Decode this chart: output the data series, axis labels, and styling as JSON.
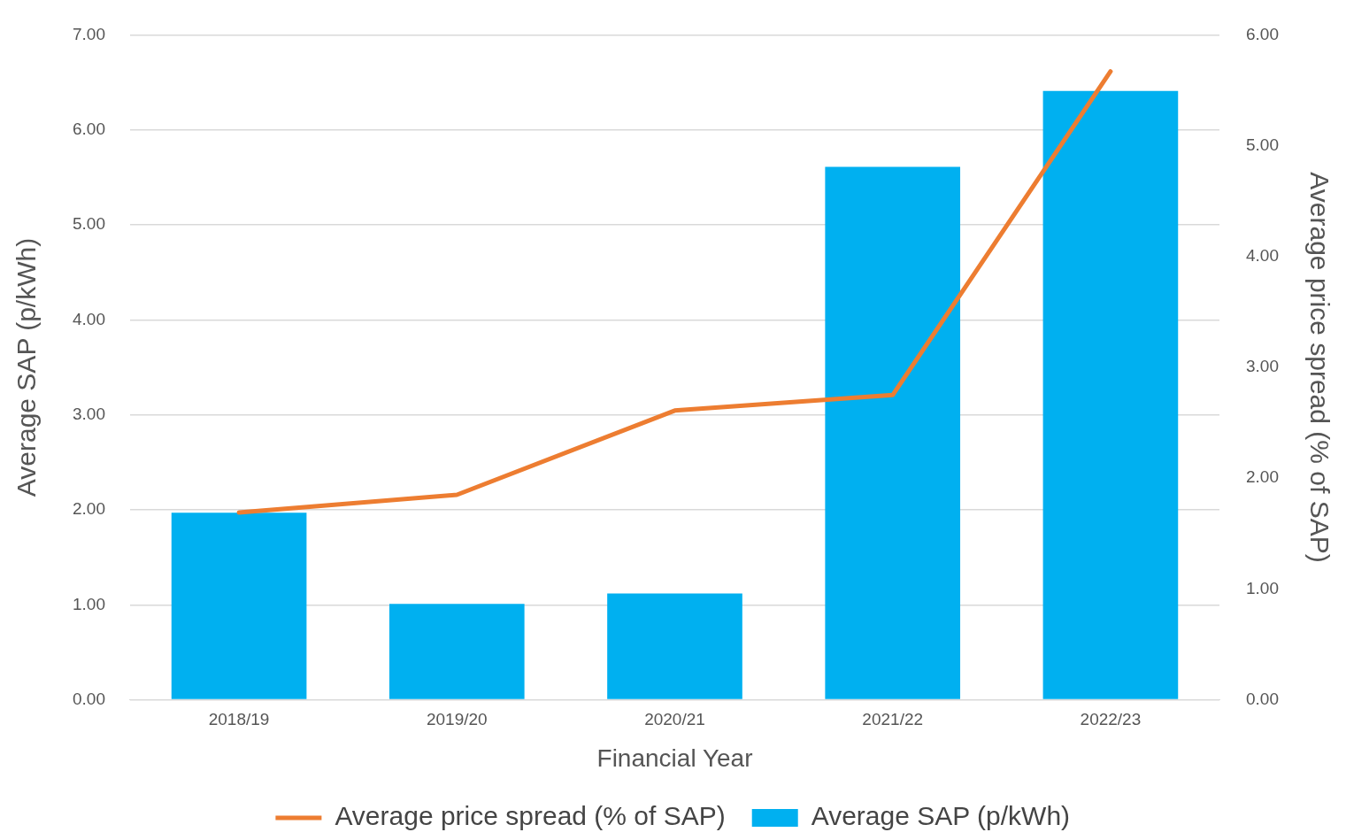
{
  "chart_data": {
    "type": "bar",
    "categories": [
      "2018/19",
      "2019/20",
      "2020/21",
      "2021/22",
      "2022/23"
    ],
    "xlabel": "Financial Year",
    "ylabel": "Average SAP (p/kWh)",
    "y2label": "Average price spread (% of SAP)",
    "series": [
      {
        "name": "Average SAP (p/kWh)",
        "color": "#00b0f0",
        "values": [
          1.97,
          1.01,
          1.12,
          5.61,
          6.41
        ]
      },
      {
        "name": "Average price spread (% of SAP)",
        "type": "line",
        "axis": "y2",
        "color": "#ed7d31",
        "values": [
          1.69,
          1.85,
          2.61,
          2.75,
          5.67
        ]
      }
    ],
    "ylim": [
      0,
      7
    ],
    "yticks": [
      {
        "value": 0,
        "label": "0.00"
      },
      {
        "value": 1,
        "label": "1.00"
      },
      {
        "value": 2,
        "label": "2.00"
      },
      {
        "value": 3,
        "label": "3.00"
      },
      {
        "value": 4,
        "label": "4.00"
      },
      {
        "value": 5,
        "label": "5.00"
      },
      {
        "value": 6,
        "label": "6.00"
      },
      {
        "value": 7,
        "label": "7.00"
      }
    ],
    "y2lim": [
      0,
      6
    ],
    "y2ticks": [
      {
        "value": 0,
        "label": "0.00"
      },
      {
        "value": 1,
        "label": "1.00"
      },
      {
        "value": 2,
        "label": "2.00"
      },
      {
        "value": 3,
        "label": "3.00"
      },
      {
        "value": 4,
        "label": "4.00"
      },
      {
        "value": 5,
        "label": "5.00"
      },
      {
        "value": 6,
        "label": "6.00"
      }
    ],
    "grid": "y",
    "legend": "bottom",
    "marker": "none"
  }
}
